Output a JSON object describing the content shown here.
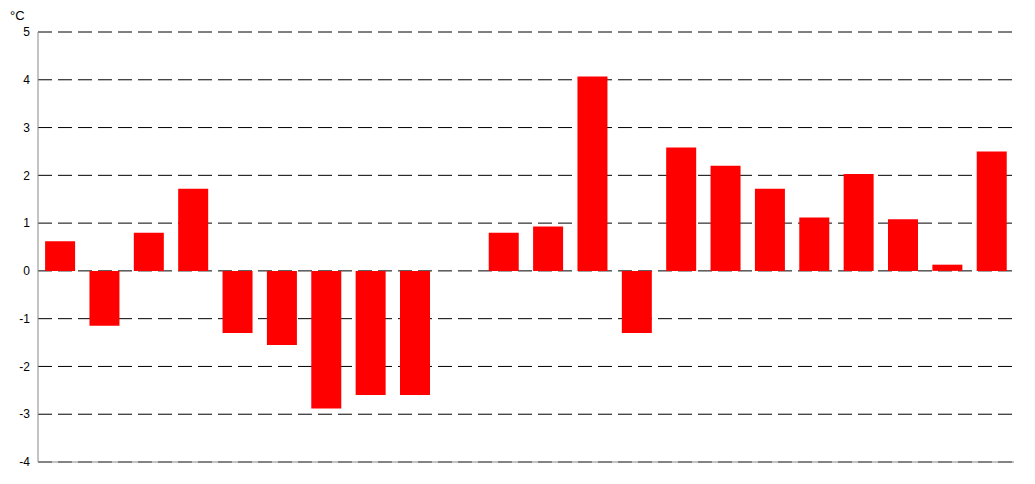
{
  "chart_data": {
    "type": "bar",
    "y_label": "°C",
    "categories": [
      null,
      null,
      null,
      null,
      null,
      null,
      null,
      null,
      null,
      null,
      null,
      null,
      null,
      null,
      null,
      null,
      null,
      null,
      null,
      null,
      null,
      null
    ],
    "values": [
      0.62,
      -1.15,
      0.8,
      1.72,
      -1.3,
      -1.55,
      -2.88,
      -2.6,
      -2.6,
      null,
      0.8,
      0.93,
      4.07,
      -1.3,
      2.58,
      2.2,
      1.72,
      1.12,
      2.03,
      1.08,
      0.13,
      2.5
    ],
    "color": "#ff0000",
    "ylim": [
      -4,
      5
    ],
    "yticks": [
      -4,
      -3,
      -2,
      -1,
      0,
      1,
      2,
      3,
      4,
      5
    ],
    "grid": true,
    "tick_labels": "y"
  }
}
